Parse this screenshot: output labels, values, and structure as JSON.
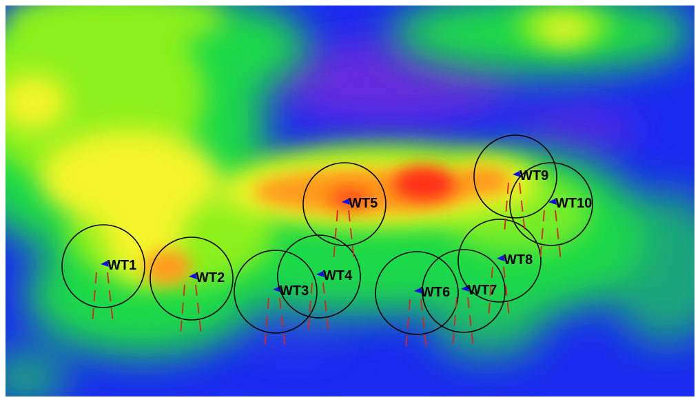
{
  "map": {
    "colors": {
      "background": "#ffffff",
      "low": "#1a2cf0",
      "low_mid": "#2f3fe6",
      "violet": "#7a2ad8",
      "green": "#1fd94a",
      "lime": "#8cf01e",
      "yellow": "#f4f52a",
      "orange": "#ff9a1c",
      "red": "#ff2e14",
      "circle_stroke": "#000000",
      "marker": "#1010e0",
      "wake_line": "#e02020"
    },
    "turbines": [
      {
        "label": "WT1"
      },
      {
        "label": "WT2"
      },
      {
        "label": "WT3"
      },
      {
        "label": "WT4"
      },
      {
        "label": "WT5"
      },
      {
        "label": "WT6"
      },
      {
        "label": "WT7"
      },
      {
        "label": "WT8"
      },
      {
        "label": "WT9"
      },
      {
        "label": "WT10"
      }
    ]
  }
}
